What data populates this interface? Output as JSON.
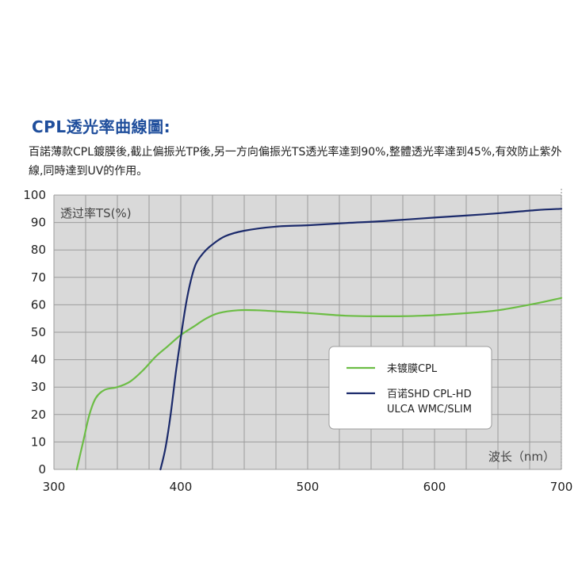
{
  "heading": "CPL透光率曲線圖:",
  "description": "百諾薄款CPL鍍膜後,截止偏振光TP後,另一方向偏振光TS透光率達到90%,整體透光率達到45%,有效防止紫外線,同時達到UV的作用。",
  "colors": {
    "heading": "#1f4e9c",
    "plot_background": "#d9d9d9",
    "grid": "#9c9c9c",
    "series_green": "#6cbd45",
    "series_navy": "#1b2a6b"
  },
  "chart_data": {
    "type": "line",
    "ylabel": "透过率TS(%)",
    "xlabel": "波长（nm）",
    "xlim": [
      300,
      700
    ],
    "ylim": [
      0,
      100
    ],
    "x_ticks": [
      300,
      400,
      500,
      600,
      700
    ],
    "y_ticks": [
      0,
      10,
      20,
      30,
      40,
      50,
      60,
      70,
      80,
      90,
      100
    ],
    "grid": true,
    "legend_position": "lower-right",
    "series": [
      {
        "name": "未镀膜CPL",
        "color": "#6cbd45",
        "points": [
          [
            318,
            0
          ],
          [
            323,
            10
          ],
          [
            328,
            20
          ],
          [
            333,
            26
          ],
          [
            340,
            29
          ],
          [
            350,
            30
          ],
          [
            360,
            32
          ],
          [
            370,
            36
          ],
          [
            380,
            41
          ],
          [
            390,
            45
          ],
          [
            400,
            49
          ],
          [
            410,
            52
          ],
          [
            420,
            55
          ],
          [
            430,
            57
          ],
          [
            445,
            58
          ],
          [
            460,
            58
          ],
          [
            480,
            57.5
          ],
          [
            500,
            57
          ],
          [
            530,
            56
          ],
          [
            560,
            55.8
          ],
          [
            590,
            56
          ],
          [
            620,
            56.8
          ],
          [
            650,
            58
          ],
          [
            680,
            60.5
          ],
          [
            700,
            62.5
          ]
        ]
      },
      {
        "name": "百诺SHD CPL-HD ULCA WMC/SLIM",
        "color": "#1b2a6b",
        "points": [
          [
            384,
            0
          ],
          [
            388,
            8
          ],
          [
            392,
            20
          ],
          [
            396,
            35
          ],
          [
            400,
            48
          ],
          [
            404,
            60
          ],
          [
            408,
            69
          ],
          [
            412,
            75
          ],
          [
            418,
            79
          ],
          [
            425,
            82
          ],
          [
            435,
            85
          ],
          [
            450,
            87
          ],
          [
            475,
            88.5
          ],
          [
            500,
            89
          ],
          [
            530,
            89.8
          ],
          [
            560,
            90.5
          ],
          [
            600,
            91.8
          ],
          [
            640,
            93
          ],
          [
            680,
            94.5
          ],
          [
            700,
            95
          ]
        ]
      }
    ]
  }
}
